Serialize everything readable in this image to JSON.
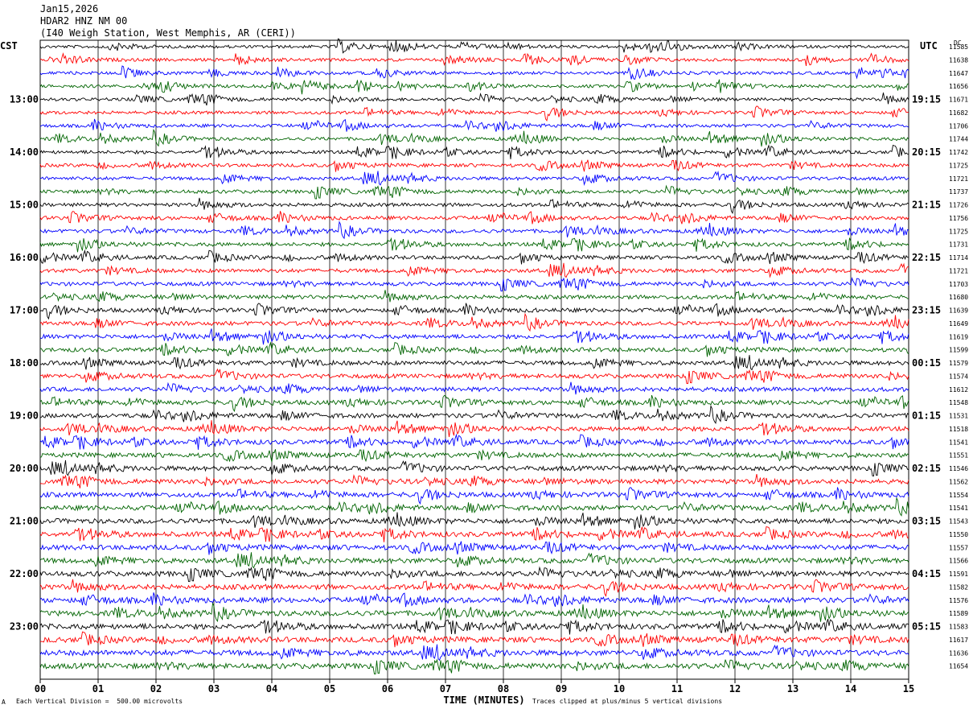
{
  "header": {
    "date": "Jan15,2026",
    "station": "HDAR2 HNZ NM 00",
    "location": "(I40 Weigh Station, West Memphis, AR (CERI))"
  },
  "left_tz": "CST",
  "right_tz": "UTC",
  "dc_label": "DC",
  "footer": {
    "scale": "Each Vertical Division =  500.00 microvolts",
    "clip": "Traces clipped at plus/minus 5 vertical divisions",
    "corner_mark": "A"
  },
  "chart_data": {
    "type": "line",
    "title": "",
    "xlabel": "TIME (MINUTES)",
    "x_ticks": [
      "00",
      "01",
      "02",
      "03",
      "04",
      "05",
      "06",
      "07",
      "08",
      "09",
      "10",
      "11",
      "12",
      "13",
      "14",
      "15"
    ],
    "xlim": [
      0,
      15
    ],
    "grid": true,
    "trace_colors": [
      "#000000",
      "#ff0000",
      "#0000ff",
      "#006400"
    ],
    "left_hour_labels": [
      "13:00",
      "14:00",
      "15:00",
      "16:00",
      "17:00",
      "18:00",
      "19:00",
      "20:00",
      "21:00",
      "22:00",
      "23:00"
    ],
    "right_hour_labels": [
      "19:15",
      "20:15",
      "21:15",
      "22:15",
      "23:15",
      "00:15",
      "01:15",
      "02:15",
      "03:15",
      "04:15",
      "05:15"
    ],
    "dc_values": [
      11585,
      11638,
      11647,
      11656,
      11671,
      11682,
      11706,
      11744,
      11742,
      11725,
      11721,
      11737,
      11726,
      11756,
      11725,
      11731,
      11714,
      11721,
      11703,
      11680,
      11639,
      11649,
      11619,
      11599,
      11579,
      11574,
      11612,
      11548,
      11531,
      11518,
      11541,
      11551,
      11546,
      11562,
      11554,
      11541,
      11543,
      11550,
      11557,
      11566,
      11591,
      11582,
      11576,
      11589,
      11583,
      11617,
      11636,
      11654
    ]
  }
}
